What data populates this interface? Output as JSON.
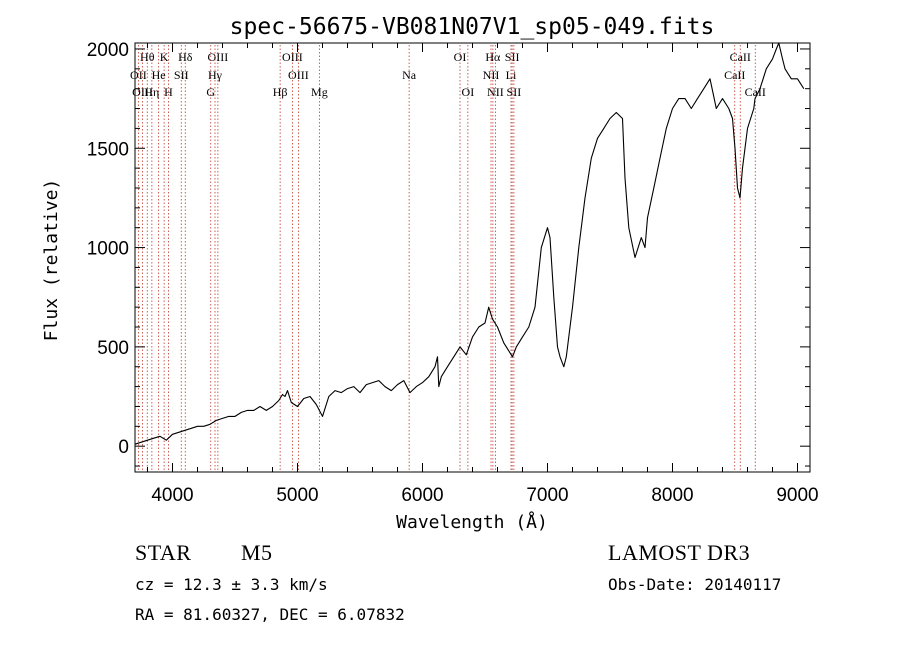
{
  "chart_data": {
    "type": "line",
    "title": "spec-56675-VB081N07V1_sp05-049.fits",
    "xlabel": "Wavelength (Å)",
    "ylabel": "Flux (relative)",
    "xlim": [
      3700,
      9100
    ],
    "ylim": [
      -130,
      2030
    ],
    "x_ticks": [
      4000,
      5000,
      6000,
      7000,
      8000,
      9000
    ],
    "y_ticks": [
      0,
      500,
      1000,
      1500,
      2000
    ],
    "series": [
      {
        "name": "flux",
        "x": [
          3700,
          3750,
          3800,
          3850,
          3900,
          3950,
          4000,
          4050,
          4100,
          4150,
          4200,
          4250,
          4300,
          4350,
          4400,
          4450,
          4500,
          4550,
          4600,
          4650,
          4700,
          4750,
          4800,
          4850,
          4880,
          4900,
          4920,
          4950,
          5000,
          5050,
          5100,
          5150,
          5200,
          5250,
          5300,
          5350,
          5400,
          5450,
          5500,
          5550,
          5600,
          5650,
          5700,
          5750,
          5800,
          5850,
          5900,
          5950,
          6000,
          6050,
          6100,
          6120,
          6130,
          6150,
          6200,
          6250,
          6300,
          6350,
          6400,
          6450,
          6500,
          6530,
          6560,
          6600,
          6650,
          6700,
          6720,
          6750,
          6800,
          6850,
          6900,
          6950,
          7000,
          7020,
          7050,
          7080,
          7100,
          7130,
          7150,
          7200,
          7250,
          7300,
          7350,
          7400,
          7450,
          7500,
          7550,
          7600,
          7620,
          7650,
          7700,
          7750,
          7780,
          7800,
          7850,
          7900,
          7950,
          8000,
          8050,
          8100,
          8150,
          8200,
          8250,
          8300,
          8350,
          8400,
          8450,
          8480,
          8500,
          8520,
          8540,
          8560,
          8600,
          8650,
          8660,
          8700,
          8750,
          8800,
          8830,
          8850,
          8880,
          8900,
          8950,
          9000,
          9050
        ],
        "y": [
          10,
          20,
          30,
          40,
          50,
          30,
          60,
          70,
          80,
          90,
          100,
          100,
          110,
          130,
          140,
          150,
          150,
          170,
          180,
          180,
          200,
          180,
          200,
          230,
          260,
          250,
          280,
          220,
          200,
          240,
          250,
          210,
          150,
          250,
          280,
          270,
          290,
          300,
          270,
          310,
          320,
          330,
          300,
          280,
          310,
          330,
          270,
          300,
          320,
          350,
          400,
          450,
          300,
          350,
          400,
          450,
          500,
          460,
          550,
          600,
          620,
          700,
          640,
          600,
          520,
          470,
          450,
          500,
          550,
          600,
          700,
          1000,
          1100,
          1050,
          750,
          500,
          450,
          400,
          450,
          700,
          1000,
          1250,
          1450,
          1550,
          1600,
          1650,
          1680,
          1650,
          1350,
          1100,
          950,
          1050,
          1000,
          1150,
          1300,
          1450,
          1600,
          1700,
          1750,
          1750,
          1700,
          1750,
          1800,
          1850,
          1700,
          1750,
          1700,
          1650,
          1500,
          1300,
          1250,
          1400,
          1600,
          1700,
          1750,
          1800,
          1900,
          1950,
          2000,
          2030,
          1950,
          1900,
          1850,
          1850,
          1800
        ]
      }
    ],
    "spectral_lines": [
      {
        "name": "Hθ",
        "wavelength": 3798,
        "row": 0
      },
      {
        "name": "K",
        "wavelength": 3933,
        "row": 0
      },
      {
        "name": "Hδ",
        "wavelength": 4102,
        "row": 0
      },
      {
        "name": "OIII",
        "wavelength": 4363,
        "row": 0
      },
      {
        "name": "OIII",
        "wavelength": 4959,
        "row": 0
      },
      {
        "name": "OI",
        "wavelength": 6300,
        "row": 0
      },
      {
        "name": "Hα",
        "wavelength": 6563,
        "row": 0
      },
      {
        "name": "SII",
        "wavelength": 6717,
        "row": 0
      },
      {
        "name": "CaII",
        "wavelength": 8542,
        "row": 0
      },
      {
        "name": "OII",
        "wavelength": 3727,
        "row": 1
      },
      {
        "name": "He",
        "wavelength": 3889,
        "row": 1
      },
      {
        "name": "SII",
        "wavelength": 4070,
        "row": 1
      },
      {
        "name": "Hγ",
        "wavelength": 4340,
        "row": 1
      },
      {
        "name": "OIII",
        "wavelength": 5007,
        "row": 1
      },
      {
        "name": "Na",
        "wavelength": 5893,
        "row": 1
      },
      {
        "name": "NII",
        "wavelength": 6548,
        "row": 1
      },
      {
        "name": "Li",
        "wavelength": 6708,
        "row": 1
      },
      {
        "name": "CaII",
        "wavelength": 8498,
        "row": 1
      },
      {
        "name": "OIII",
        "wavelength": 3760,
        "row": 2
      },
      {
        "name": "Hη",
        "wavelength": 3835,
        "row": 2
      },
      {
        "name": "H",
        "wavelength": 3968,
        "row": 2
      },
      {
        "name": "G",
        "wavelength": 4306,
        "row": 2
      },
      {
        "name": "Hβ",
        "wavelength": 4861,
        "row": 2
      },
      {
        "name": "Mg",
        "wavelength": 5175,
        "row": 2
      },
      {
        "name": "OI",
        "wavelength": 6363,
        "row": 2
      },
      {
        "name": "NII",
        "wavelength": 6583,
        "row": 2
      },
      {
        "name": "SII",
        "wavelength": 6731,
        "row": 2
      },
      {
        "name": "CaII",
        "wavelength": 8662,
        "row": 2
      }
    ]
  },
  "info": {
    "object_class": "STAR",
    "subclass": "M5",
    "survey": "LAMOST DR3",
    "cz": "cz = 12.3 ± 3.3 km/s",
    "obs_date": "Obs-Date: 20140117",
    "coords": "RA =  81.60327, DEC =   6.07832"
  },
  "colors": {
    "axis": "#000000",
    "spectrum": "#000000",
    "line_markers": "#c0392b"
  }
}
